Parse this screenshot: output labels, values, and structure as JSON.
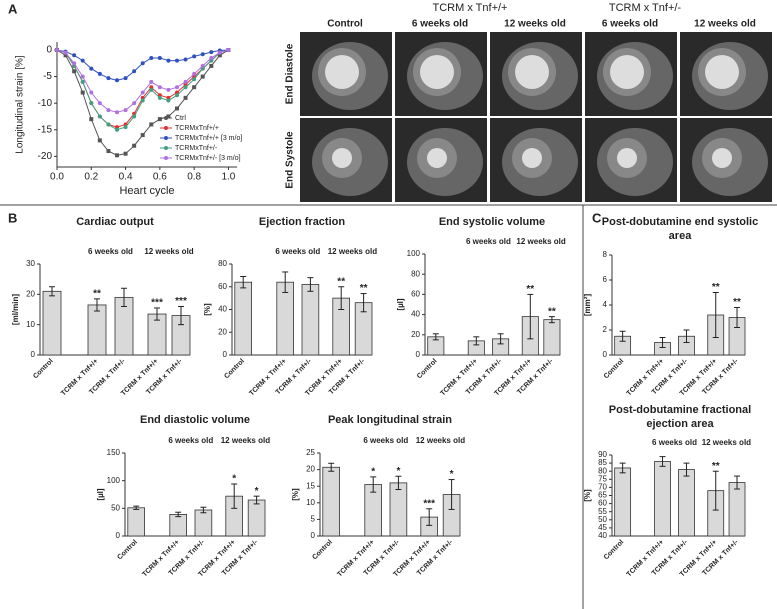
{
  "labels": {
    "panel_a": "A",
    "panel_b": "B",
    "panel_c": "C",
    "mri_group_1": "TCRM x Tnf+/+",
    "mri_group_2": "TCRM x Tnf+/-",
    "mri_columns": [
      "Control",
      "6 weeks old",
      "12 weeks old",
      "6 weeks old",
      "12 weeks old"
    ],
    "mri_rows": [
      "End Diastole",
      "End Systole"
    ]
  },
  "chart_data": [
    {
      "type": "line",
      "xlabel": "Heart cycle",
      "ylabel": "Longitudinal strain [%]",
      "x": [
        0,
        0.05,
        0.1,
        0.15,
        0.2,
        0.25,
        0.3,
        0.35,
        0.4,
        0.45,
        0.5,
        0.55,
        0.6,
        0.65,
        0.7,
        0.75,
        0.8,
        0.85,
        0.9,
        0.95,
        1.0
      ],
      "xlim": [
        0,
        1.05
      ],
      "ylim": [
        -22,
        1.5
      ],
      "xticks": [
        {
          "value": 0,
          "label": "0.0"
        },
        {
          "value": 0.2,
          "label": "0.2"
        },
        {
          "value": 0.4,
          "label": "0.4"
        },
        {
          "value": 0.6,
          "label": "0.6"
        },
        {
          "value": 0.8,
          "label": "0.8"
        },
        {
          "value": 1.0,
          "label": "1.0"
        }
      ],
      "yticks": [
        0,
        -5,
        -10,
        -15,
        -20
      ],
      "series": [
        {
          "name": "Ctrl",
          "color": "#555555",
          "values": [
            0,
            -1,
            -4,
            -8,
            -13,
            -17,
            -19,
            -19.8,
            -19.5,
            -18,
            -16,
            -14,
            -13,
            -12.5,
            -11,
            -9,
            -7,
            -5,
            -3,
            -1,
            0
          ]
        },
        {
          "name": "TCRMxTnf+/+",
          "color": "#e03030",
          "values": [
            0,
            -0.5,
            -3,
            -6,
            -10,
            -12.5,
            -14,
            -14.5,
            -14,
            -12,
            -9,
            -7,
            -8.5,
            -9,
            -8,
            -6.5,
            -5,
            -3.5,
            -2,
            -0.5,
            0
          ]
        },
        {
          "name": "TCRMxTnf+/+ [3 m/o]",
          "color": "#3050c0",
          "values": [
            0,
            -0.3,
            -1,
            -2,
            -3.5,
            -4.5,
            -5.3,
            -5.7,
            -5.3,
            -4,
            -2.5,
            -1.5,
            -1.5,
            -2,
            -2,
            -1.8,
            -1.2,
            -0.8,
            -0.4,
            -0.1,
            0
          ]
        },
        {
          "name": "TCRMxTnf+/-",
          "color": "#40a080",
          "values": [
            0,
            -0.5,
            -3,
            -6,
            -10,
            -12.5,
            -14,
            -15,
            -14.5,
            -12.5,
            -9.5,
            -7.5,
            -9,
            -9.5,
            -8.5,
            -7,
            -5.5,
            -3.5,
            -2,
            -0.5,
            0
          ]
        },
        {
          "name": "TCRMxTnf+/- [3 m/o]",
          "color": "#b070e0",
          "values": [
            0,
            -0.5,
            -2.5,
            -5,
            -8,
            -10,
            -11.3,
            -11.7,
            -11.3,
            -10,
            -8,
            -6,
            -7,
            -7.5,
            -7,
            -6,
            -4.5,
            -3,
            -1.5,
            -0.5,
            0
          ]
        }
      ]
    },
    {
      "type": "bar",
      "title": "Cardiac output",
      "ylabel": "[ml/min]",
      "groups": [
        "6 weeks old",
        "12 weeks old"
      ],
      "categories": [
        "Control",
        "TCRM x Tnf+/+",
        "TCRM x Tnf+/-",
        "TCRM x Tnf+/+",
        "TCRM x Tnf+/-"
      ],
      "values": [
        21,
        16.5,
        19,
        13.5,
        13
      ],
      "errors": [
        1.5,
        2,
        3,
        2,
        3
      ],
      "stars": [
        null,
        "**",
        null,
        "***",
        "***"
      ],
      "ylim": [
        0,
        30
      ],
      "yticks": [
        0,
        10,
        20,
        30
      ],
      "color": "#d9d9d9"
    },
    {
      "type": "bar",
      "title": "Ejection fraction",
      "ylabel": "[%]",
      "groups": [
        "6 weeks old",
        "12 weeks old"
      ],
      "categories": [
        "Control",
        "TCRM x Tnf+/+",
        "TCRM x Tnf+/-",
        "TCRM x Tnf+/+",
        "TCRM x Tnf+/-"
      ],
      "values": [
        64,
        64,
        62,
        50,
        46
      ],
      "errors": [
        5,
        9,
        6,
        10,
        8
      ],
      "stars": [
        null,
        null,
        null,
        "**",
        "**"
      ],
      "ylim": [
        0,
        80
      ],
      "yticks": [
        0,
        20,
        40,
        60,
        80
      ],
      "color": "#d9d9d9"
    },
    {
      "type": "bar",
      "title": "End systolic volume",
      "ylabel": "[µl]",
      "groups": [
        "6 weeks old",
        "12 weeks old"
      ],
      "categories": [
        "Control",
        "TCRM x Tnf+/+",
        "TCRM x Tnf+/-",
        "TCRM x Tnf+/+",
        "TCRM x Tnf+/-"
      ],
      "values": [
        18,
        14,
        16,
        38,
        35
      ],
      "errors": [
        3,
        4,
        5,
        22,
        3
      ],
      "stars": [
        null,
        null,
        null,
        "**",
        "**"
      ],
      "ylim": [
        0,
        100
      ],
      "yticks": [
        0,
        20,
        40,
        60,
        80,
        100
      ],
      "color": "#d9d9d9"
    },
    {
      "type": "bar",
      "title": "End diastolic volume",
      "ylabel": "[µl]",
      "groups": [
        "6 weeks old",
        "12 weeks old"
      ],
      "categories": [
        "Control",
        "TCRM x Tnf+/+",
        "TCRM x Tnf+/-",
        "TCRM x Tnf+/+",
        "TCRM x Tnf+/-"
      ],
      "values": [
        51,
        39,
        47,
        72,
        65
      ],
      "errors": [
        3,
        4,
        5,
        22,
        7
      ],
      "stars": [
        null,
        null,
        null,
        "*",
        "*"
      ],
      "ylim": [
        0,
        150
      ],
      "yticks": [
        0,
        50,
        100,
        150
      ],
      "color": "#d9d9d9"
    },
    {
      "type": "bar",
      "title": "Peak longitudinal strain",
      "ylabel": "[%]",
      "groups": [
        "6 weeks old",
        "12 weeks old"
      ],
      "categories": [
        "Control",
        "TCRM x Tnf+/+",
        "TCRM x Tnf+/-",
        "TCRM x Tnf+/+",
        "TCRM x Tnf+/-"
      ],
      "values": [
        20.7,
        15.5,
        16,
        5.7,
        12.5
      ],
      "errors": [
        1.2,
        2.3,
        2,
        2.5,
        4.5
      ],
      "stars": [
        null,
        "*",
        "*",
        "***",
        "*"
      ],
      "ylim": [
        0,
        25
      ],
      "yticks": [
        0,
        5,
        10,
        15,
        20,
        25
      ],
      "color": "#d9d9d9"
    },
    {
      "type": "bar",
      "title": "Post-dobutamine end systolic area",
      "ylabel": "[mm²]",
      "categories": [
        "Control",
        "TCRM x Tnf+/+",
        "TCRM x Tnf+/-",
        "TCRM x Tnf+/+",
        "TCRM x Tnf+/-"
      ],
      "values": [
        1.5,
        1.0,
        1.5,
        3.2,
        3.0
      ],
      "errors": [
        0.4,
        0.4,
        0.5,
        1.8,
        0.8
      ],
      "stars": [
        null,
        null,
        null,
        "**",
        "**"
      ],
      "ylim": [
        0,
        8
      ],
      "yticks": [
        0,
        2,
        4,
        6,
        8
      ],
      "color": "#d9d9d9"
    },
    {
      "type": "bar",
      "title": "Post-dobutamine fractional ejection area",
      "ylabel": "[%]",
      "groups": [
        "6 weeks old",
        "12 weeks old"
      ],
      "categories": [
        "Control",
        "TCRM x Tnf+/+",
        "TCRM x Tnf+/-",
        "TCRM x Tnf+/+",
        "TCRM x Tnf+/-"
      ],
      "values": [
        82,
        86,
        81,
        68,
        73
      ],
      "errors": [
        3,
        3,
        4,
        12,
        4
      ],
      "stars": [
        null,
        null,
        null,
        "**",
        null
      ],
      "ylim": [
        40,
        90
      ],
      "yticks": [
        40,
        45,
        50,
        55,
        60,
        65,
        70,
        75,
        80,
        85,
        90
      ],
      "color": "#d9d9d9"
    }
  ]
}
